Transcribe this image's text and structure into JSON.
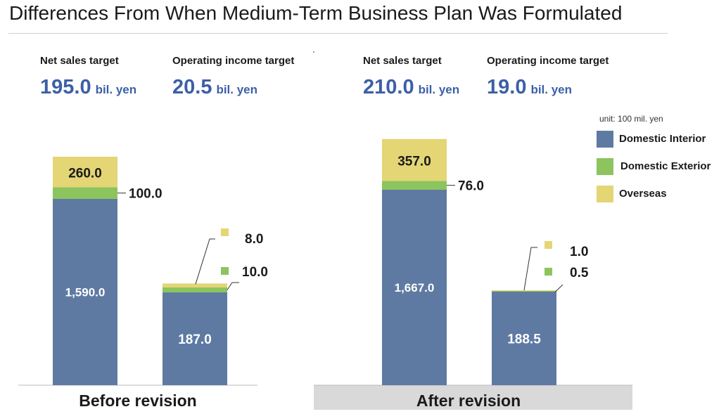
{
  "title": "Differences From When Medium-Term Business Plan Was Formulated",
  "unit_note": "unit: 100 mil. yen",
  "legend": [
    {
      "label": "Domestic Interior",
      "color": "#5e7aa2"
    },
    {
      "label": "Domestic Exterior",
      "color": "#8cc45e"
    },
    {
      "label": "Overseas",
      "color": "#e4d575"
    }
  ],
  "panels": [
    {
      "label": "Before revision",
      "kpis": [
        {
          "label": "Net sales target",
          "value": "195.0",
          "unit": "bil. yen"
        },
        {
          "label": "Operating income target",
          "value": "20.5",
          "unit": "bil. yen"
        }
      ]
    },
    {
      "label": "After revision",
      "kpis": [
        {
          "label": "Net sales target",
          "value": "210.0",
          "unit": "bil. yen"
        },
        {
          "label": "Operating income target",
          "value": "19.0",
          "unit": "bil. yen"
        }
      ]
    }
  ],
  "chart_data": {
    "type": "bar",
    "stacked": true,
    "unit": "100 mil. yen",
    "categories": [
      "Before revision - Net sales",
      "Before revision - Operating income",
      "After revision - Net sales",
      "After revision - Operating income"
    ],
    "series": [
      {
        "name": "Domestic Interior",
        "values": [
          1590.0,
          187.0,
          1667.0,
          188.5
        ],
        "labels": [
          "1,590.0",
          "187.0",
          "1,667.0",
          "188.5"
        ]
      },
      {
        "name": "Domestic Exterior",
        "values": [
          100.0,
          10.0,
          76.0,
          0.5
        ],
        "labels": [
          "100.0",
          "10.0",
          "76.0",
          "0.5"
        ]
      },
      {
        "name": "Overseas",
        "values": [
          260.0,
          8.0,
          357.0,
          1.0
        ],
        "labels": [
          "260.0",
          "8.0",
          "357.0",
          "1.0"
        ]
      }
    ],
    "colors": {
      "domestic_interior": "#5e7aa2",
      "domestic_exterior": "#8cc45e",
      "overseas": "#e4d575",
      "axis": "#bbbbbb",
      "leader": "#333333"
    }
  }
}
